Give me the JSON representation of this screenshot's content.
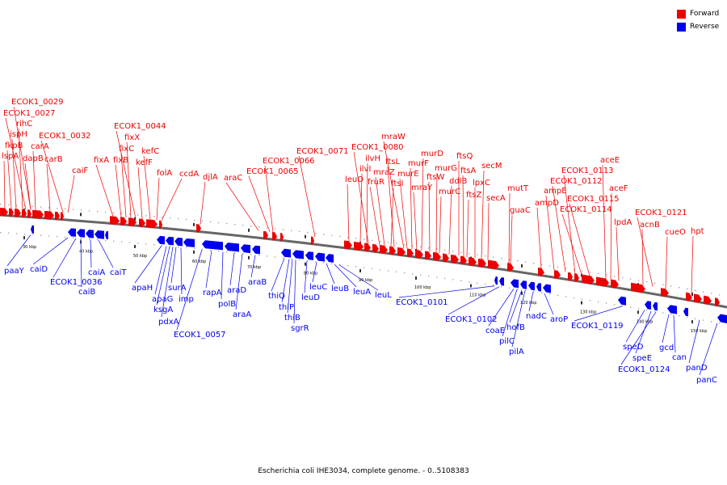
{
  "colors": {
    "forward": "#ee0000",
    "reverse": "#0000ee",
    "backbone": "#666666"
  },
  "legend": {
    "forward": "Forward",
    "reverse": "Reverse"
  },
  "caption": "Escherichia coli IHE3034, complete genome. - 0..5108383",
  "ticks": [
    "30 kbp",
    "40 kbp",
    "50 kbp",
    "60 kbp",
    "70 kbp",
    "80 kbp",
    "90 kbp",
    "100 kbp",
    "110 kbp",
    "120 kbp",
    "130 kbp",
    "140 kbp",
    "150 kbp"
  ],
  "forward_genes": [
    "lspA",
    "fkpB",
    "ispH",
    "rihC",
    "ECOK1_0027",
    "ECOK1_0029",
    "dapB",
    "carA",
    "carB",
    "caiF",
    "ECOK1_0032",
    "fixA",
    "fixB",
    "fixC",
    "fixX",
    "ECOK1_0044",
    "kefF",
    "kefC",
    "folA",
    "ccdA",
    "djlA",
    "araC",
    "ECOK1_0065",
    "ECOK1_0066",
    "ECOK1_0071",
    "leuO",
    "ilvI",
    "ilvH",
    "fruR",
    "mraZ",
    "ECOK1_0080",
    "ftsI",
    "ftsL",
    "mraW",
    "murE",
    "murF",
    "mraY",
    "murD",
    "ftsW",
    "murG",
    "murC",
    "ddlB",
    "ftsQ",
    "ftsA",
    "ftsZ",
    "lpxC",
    "secM",
    "secA",
    "mutT",
    "guaC",
    "ampD",
    "ampE",
    "ECOK1_0112",
    "ECOK1_0113",
    "ECOK1_0114",
    "ECOK1_0115",
    "aceE",
    "aceF",
    "lpdA",
    "acnB",
    "ECOK1_0121",
    "cueO",
    "hpt"
  ],
  "reverse_genes": [
    "paaY",
    "caiD",
    "ECOK1_0036",
    "caiB",
    "caiA",
    "caiT",
    "apaH",
    "apaG",
    "ksgA",
    "pdxA",
    "surA",
    "imp",
    "ECOK1_0057",
    "rapA",
    "polB",
    "araD",
    "araA",
    "araB",
    "thiQ",
    "thiP",
    "thiB",
    "sgrR",
    "leuD",
    "leuC",
    "leuB",
    "leuA",
    "leuL",
    "ECOK1_0101",
    "ECOK1_0102",
    "coaE",
    "pilC",
    "hofB",
    "pilA",
    "nadC",
    "aroP",
    "ECOK1_0119",
    "speD",
    "speE",
    "ECOK1_0124",
    "gcd",
    "can",
    "panD",
    "panC"
  ]
}
